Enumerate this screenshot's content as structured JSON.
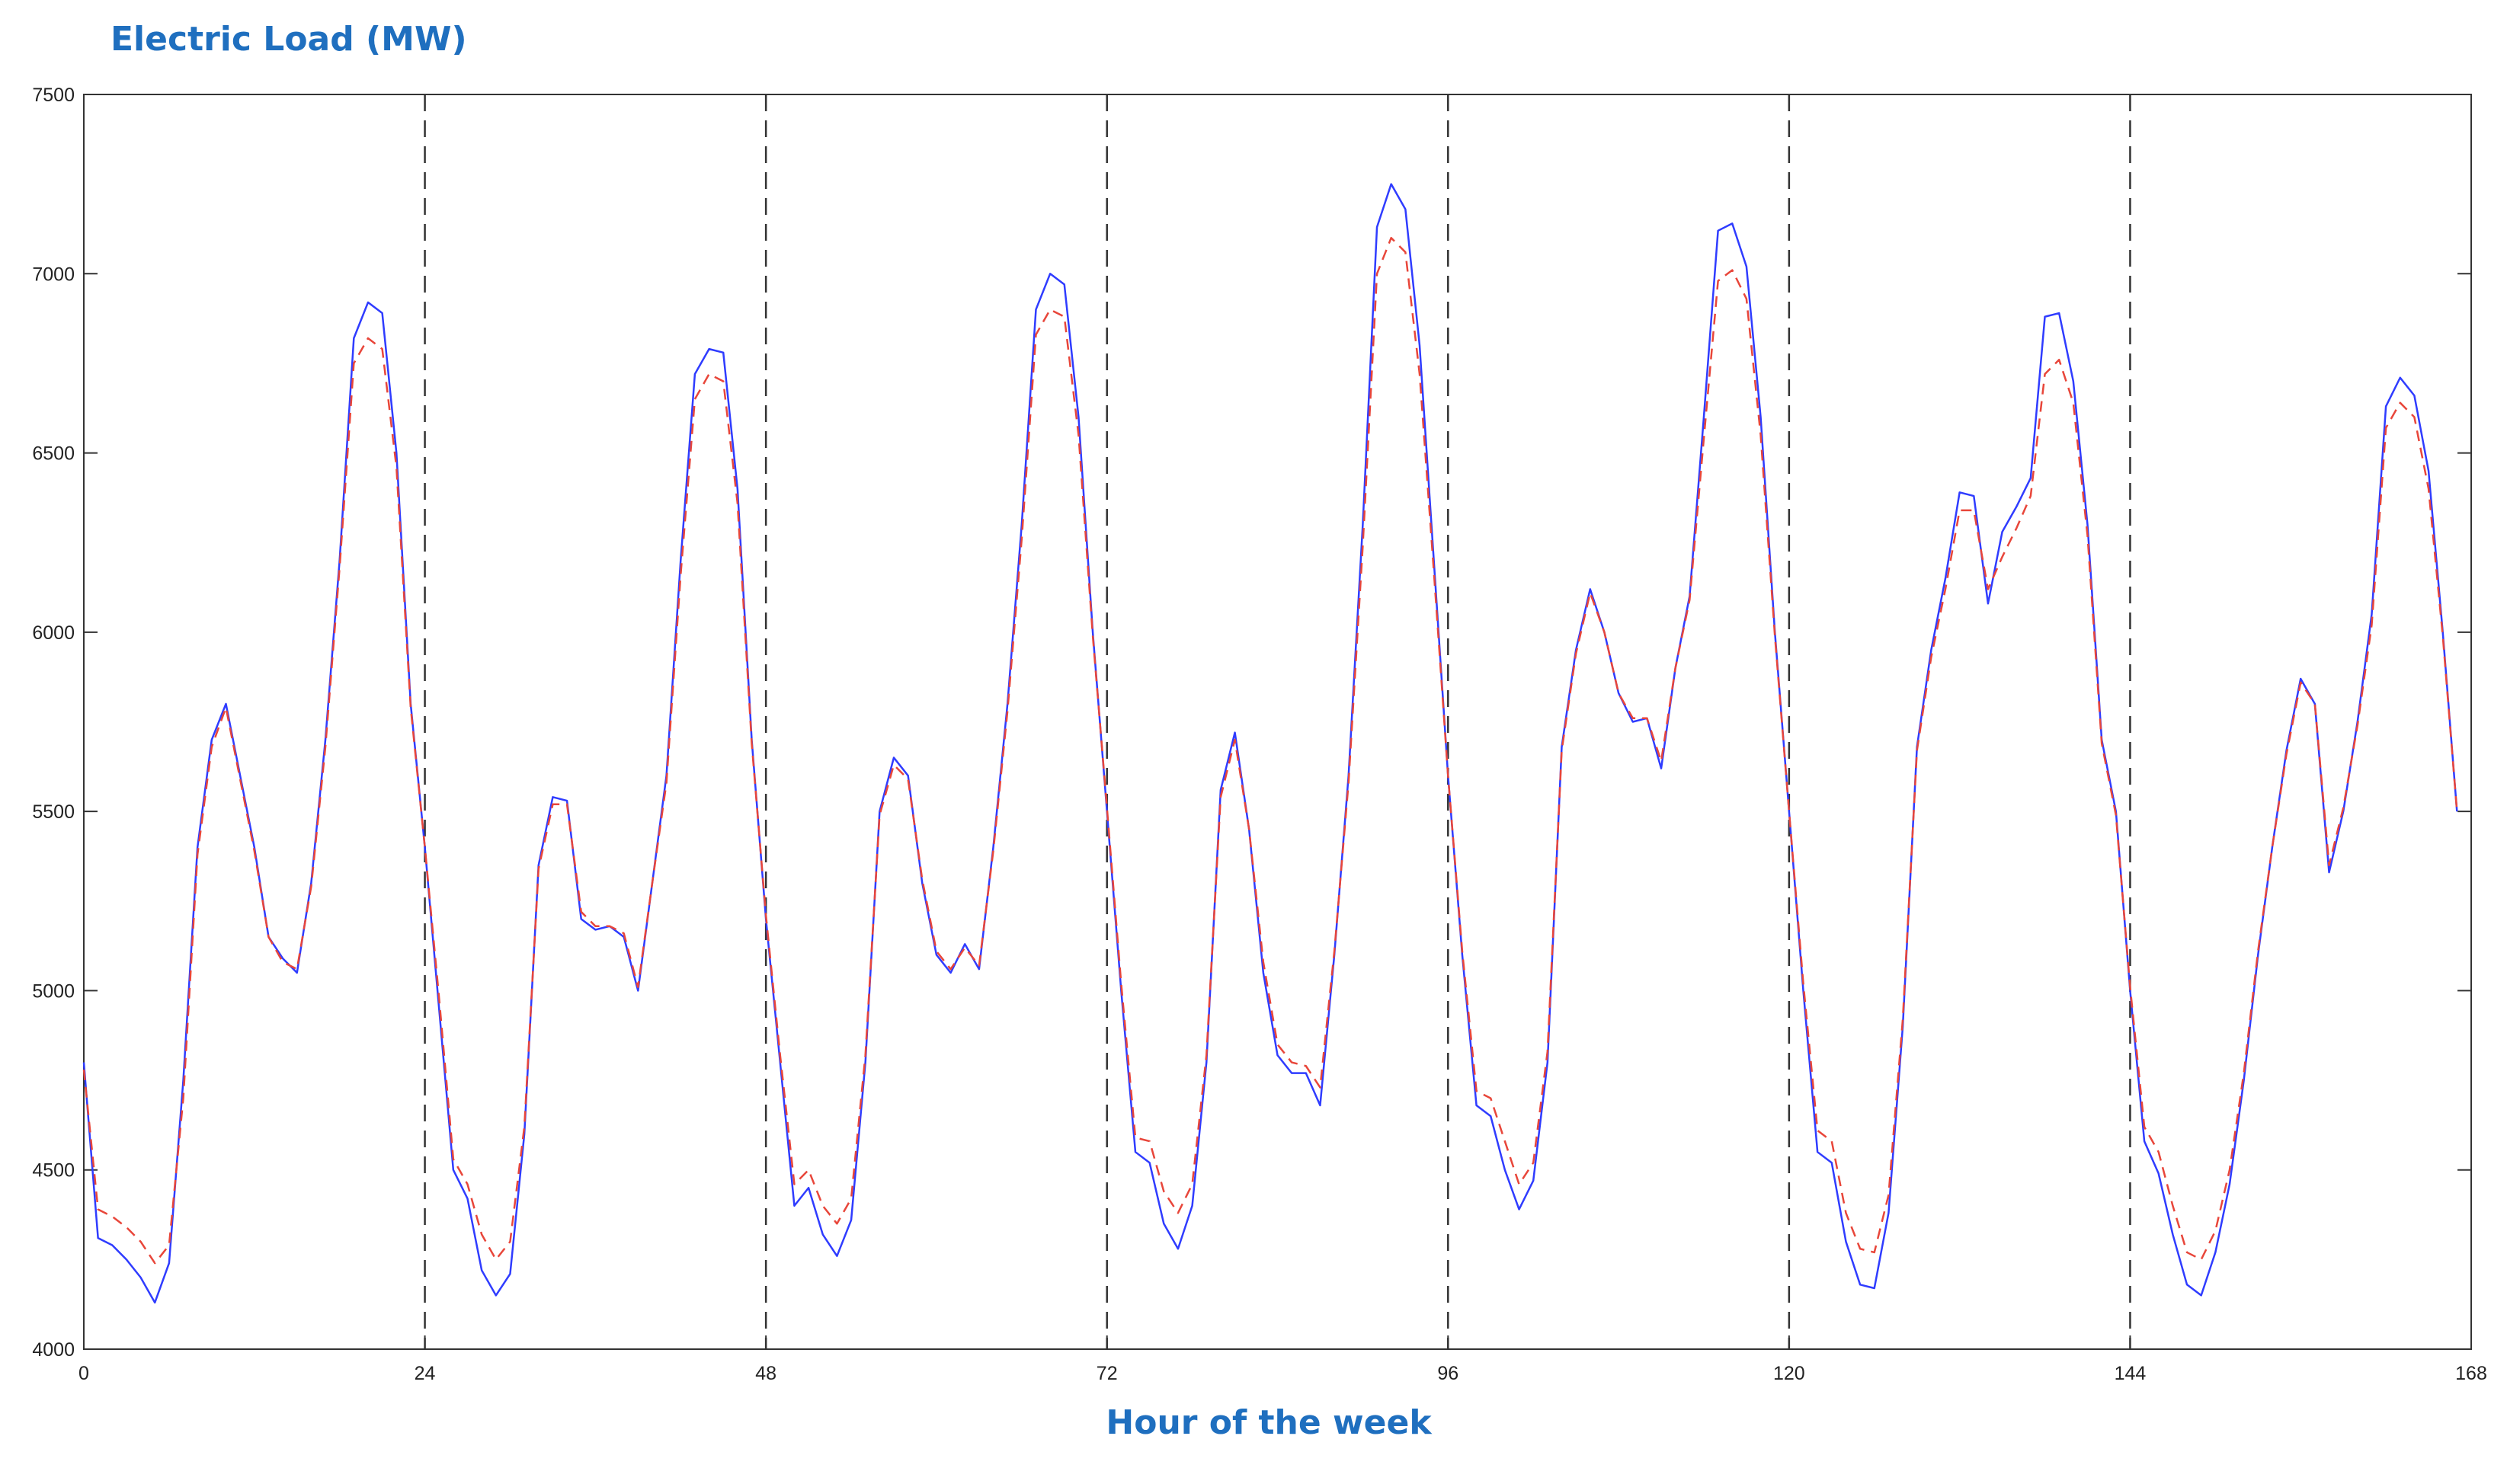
{
  "chart_data": {
    "type": "line",
    "title": "",
    "ylabel": "Electric Load (MW)",
    "xlabel": "Hour of the week",
    "xlim": [
      0,
      168
    ],
    "ylim": [
      4000,
      7500
    ],
    "x_ticks": [
      0,
      24,
      48,
      72,
      96,
      120,
      144,
      168
    ],
    "y_ticks": [
      4000,
      4500,
      5000,
      5500,
      6000,
      6500,
      7000,
      7500
    ],
    "day_dividers": [
      24,
      48,
      72,
      96,
      120,
      144
    ],
    "grid": false,
    "legend": "none",
    "colors": {
      "actual": "#2f3cff",
      "forecast": "#e8463a",
      "divider": "#333333",
      "axis": "#333333",
      "title": "#1f6fbf"
    },
    "series": [
      {
        "style": "solid",
        "values": [
          4800,
          4310,
          4290,
          4250,
          4200,
          4130,
          4240,
          4750,
          5400,
          5700,
          5800,
          5600,
          5400,
          5150,
          5090,
          5050,
          5300,
          5700,
          6200,
          6820,
          6920,
          6890,
          6500,
          5800,
          5400,
          4950,
          4500,
          4420,
          4220,
          4150,
          4210,
          4600,
          5350,
          5540,
          5530,
          5200,
          5170,
          5180,
          5150,
          5000,
          5300,
          5600,
          6200,
          6720,
          6790,
          6780,
          6400,
          5700,
          5200,
          4800,
          4400,
          4450,
          4320,
          4260,
          4360,
          4800,
          5500,
          5650,
          5600,
          5300,
          5100,
          5050,
          5130,
          5060,
          5400,
          5800,
          6300,
          6900,
          7000,
          6970,
          6600,
          6000,
          5500,
          5000,
          4550,
          4520,
          4350,
          4280,
          4400,
          4800,
          5560,
          5720,
          5450,
          5050,
          4820,
          4770,
          4770,
          4680,
          5100,
          5600,
          6300,
          7130,
          7250,
          7180,
          6800,
          6200,
          5600,
          5100,
          4680,
          4650,
          4500,
          4390,
          4470,
          4800,
          5680,
          5950,
          6120,
          6000,
          5830,
          5750,
          5760,
          5620,
          5900,
          6100,
          6600,
          7120,
          7140,
          7020,
          6600,
          6000,
          5500,
          5000,
          4550,
          4520,
          4300,
          4180,
          4170,
          4380,
          4900,
          5680,
          5950,
          6150,
          6390,
          6380,
          6080,
          6280,
          6350,
          6430,
          6880,
          6890,
          6700,
          6300,
          5700,
          5500,
          5000,
          4580,
          4490,
          4320,
          4180,
          4150,
          4270,
          4460,
          4750,
          5100,
          5400,
          5670,
          5870,
          5800,
          5330,
          5500,
          5750,
          6050,
          6630,
          6710,
          6660,
          6450,
          6000,
          5500
        ]
      },
      {
        "style": "dashed",
        "values": [
          4780,
          4390,
          4370,
          4340,
          4300,
          4240,
          4290,
          4700,
          5380,
          5680,
          5790,
          5590,
          5390,
          5150,
          5080,
          5060,
          5290,
          5680,
          6180,
          6750,
          6820,
          6790,
          6460,
          5790,
          5400,
          4980,
          4530,
          4460,
          4320,
          4250,
          4300,
          4620,
          5340,
          5520,
          5520,
          5220,
          5180,
          5180,
          5160,
          5010,
          5300,
          5580,
          6160,
          6650,
          6720,
          6700,
          6360,
          5690,
          5210,
          4820,
          4460,
          4500,
          4400,
          4350,
          4420,
          4820,
          5490,
          5630,
          5590,
          5310,
          5110,
          5060,
          5120,
          5070,
          5390,
          5780,
          6260,
          6830,
          6900,
          6880,
          6550,
          5990,
          5510,
          5020,
          4590,
          4580,
          4440,
          4380,
          4460,
          4820,
          5540,
          5700,
          5450,
          5080,
          4850,
          4800,
          4790,
          4730,
          5110,
          5580,
          6240,
          7000,
          7100,
          7060,
          6720,
          6170,
          5600,
          5110,
          4720,
          4700,
          4580,
          4460,
          4520,
          4830,
          5670,
          5940,
          6110,
          6000,
          5830,
          5760,
          5760,
          5640,
          5900,
          6090,
          6540,
          6980,
          7010,
          6930,
          6550,
          5990,
          5500,
          5020,
          4610,
          4580,
          4380,
          4280,
          4270,
          4430,
          4920,
          5670,
          5930,
          6120,
          6340,
          6340,
          6120,
          6210,
          6290,
          6380,
          6720,
          6760,
          6640,
          6270,
          5690,
          5490,
          5010,
          4620,
          4550,
          4400,
          4270,
          4250,
          4330,
          4500,
          4770,
          5110,
          5400,
          5660,
          5860,
          5800,
          5350,
          5510,
          5740,
          6020,
          6570,
          6640,
          6600,
          6400,
          5990,
          5500
        ]
      }
    ]
  }
}
